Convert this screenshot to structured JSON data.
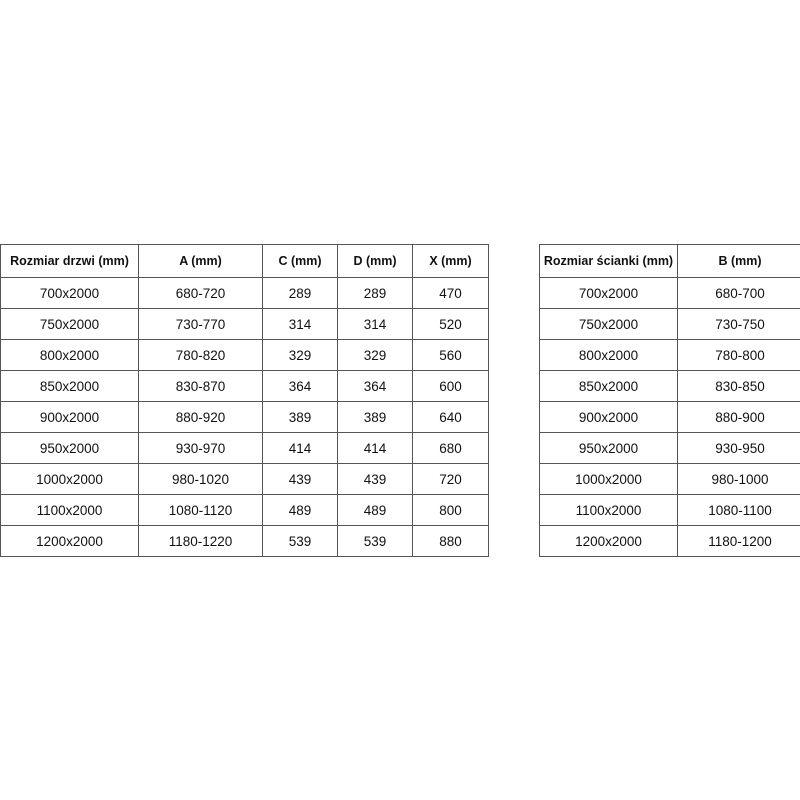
{
  "door_table": {
    "headers": [
      "Rozmiar drzwi (mm)",
      "A (mm)",
      "C (mm)",
      "D (mm)",
      "X (mm)"
    ],
    "rows": [
      [
        "700x2000",
        "680-720",
        "289",
        "289",
        "470"
      ],
      [
        "750x2000",
        "730-770",
        "314",
        "314",
        "520"
      ],
      [
        "800x2000",
        "780-820",
        "329",
        "329",
        "560"
      ],
      [
        "850x2000",
        "830-870",
        "364",
        "364",
        "600"
      ],
      [
        "900x2000",
        "880-920",
        "389",
        "389",
        "640"
      ],
      [
        "950x2000",
        "930-970",
        "414",
        "414",
        "680"
      ],
      [
        "1000x2000",
        "980-1020",
        "439",
        "439",
        "720"
      ],
      [
        "1100x2000",
        "1080-1120",
        "489",
        "489",
        "800"
      ],
      [
        "1200x2000",
        "1180-1220",
        "539",
        "539",
        "880"
      ]
    ]
  },
  "wall_table": {
    "headers": [
      "Rozmiar ścianki (mm)",
      "B (mm)"
    ],
    "rows": [
      [
        "700x2000",
        "680-700"
      ],
      [
        "750x2000",
        "730-750"
      ],
      [
        "800x2000",
        "780-800"
      ],
      [
        "850x2000",
        "830-850"
      ],
      [
        "900x2000",
        "880-900"
      ],
      [
        "950x2000",
        "930-950"
      ],
      [
        "1000x2000",
        "980-1000"
      ],
      [
        "1100x2000",
        "1080-1100"
      ],
      [
        "1200x2000",
        "1180-1200"
      ]
    ]
  }
}
